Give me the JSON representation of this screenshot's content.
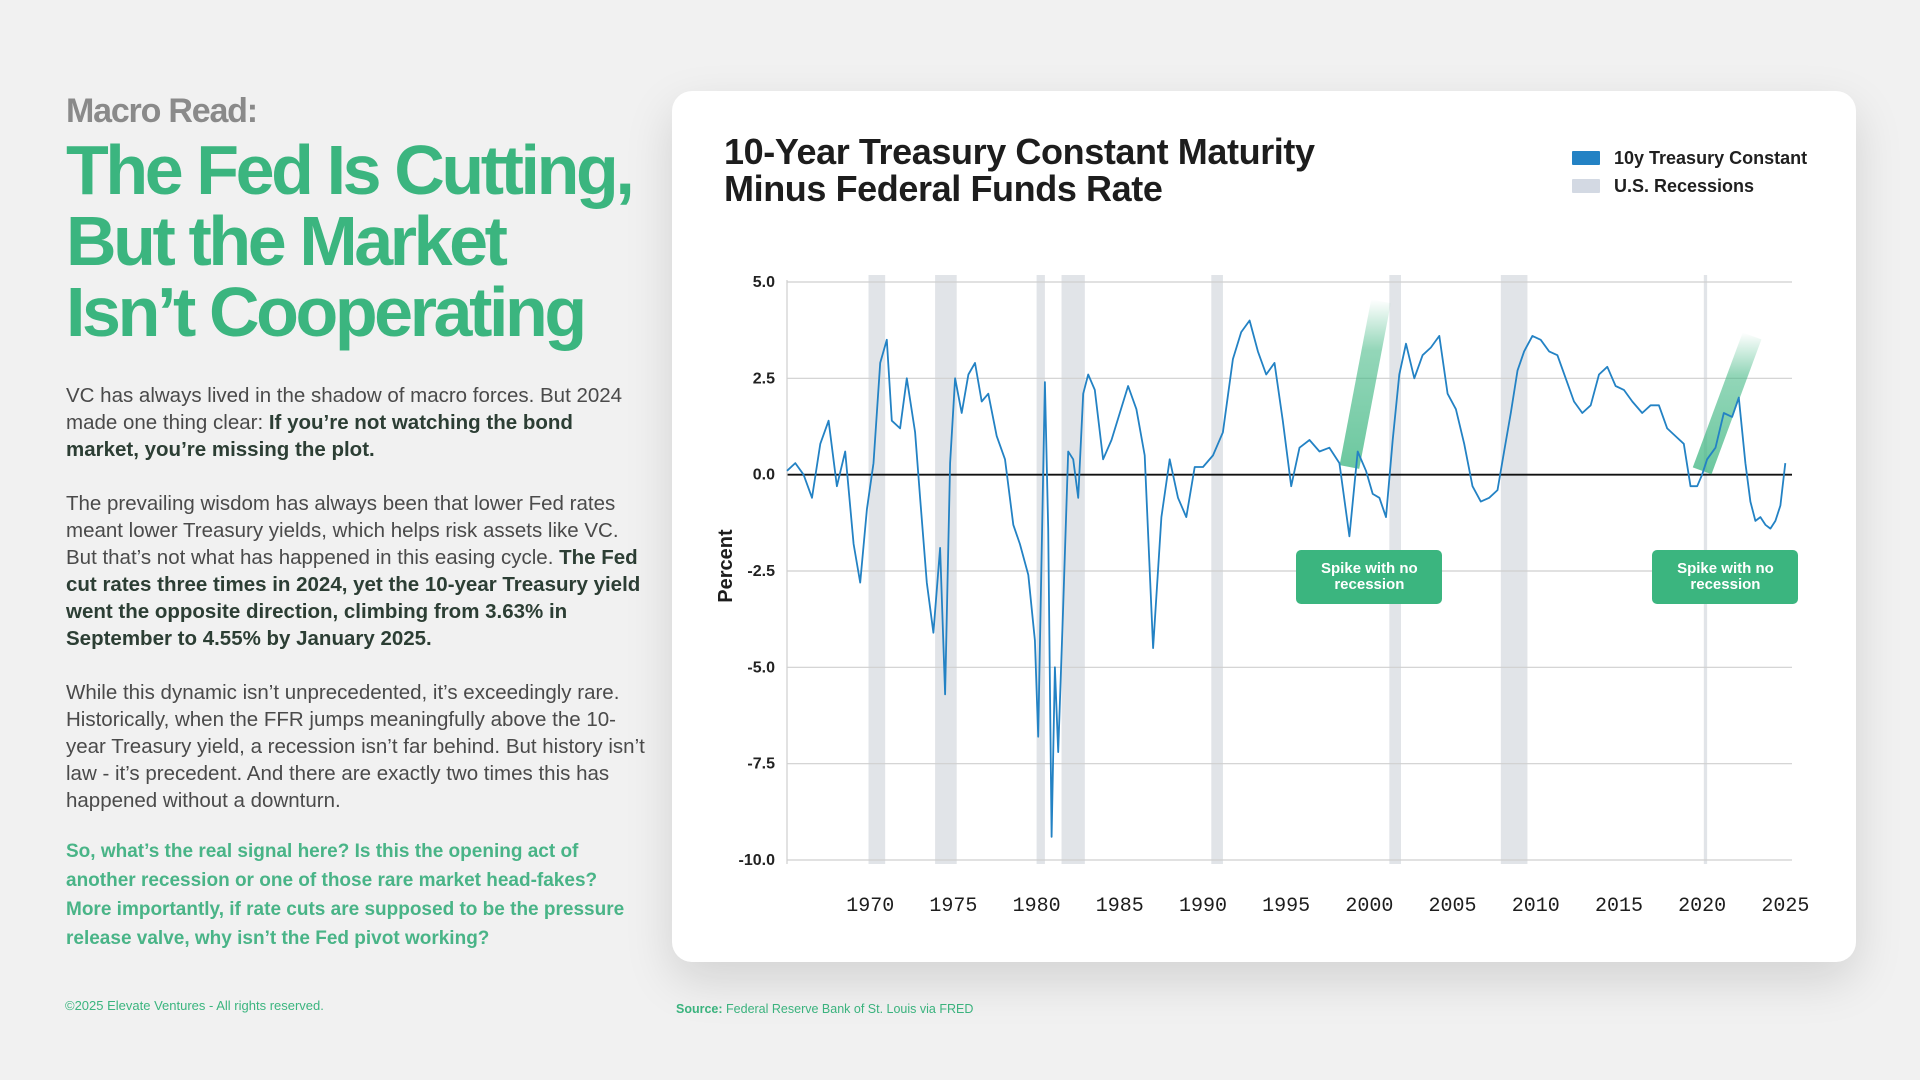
{
  "left": {
    "kicker": "Macro Read:",
    "headline": [
      "The Fed Is Cutting,",
      "But the Market",
      "Isn’t Cooperating"
    ],
    "p1_plain": "VC has always lived in the shadow of macro forces. But 2024 made one thing clear: ",
    "p1_bold": "If you’re not watching the bond market, you’re missing the plot.",
    "p2_plain": "The prevailing wisdom has always been that lower Fed rates meant lower Treasury yields, which helps risk assets like VC. But that’s not what has happened in this easing cycle. ",
    "p2_bold": "The Fed cut rates three times in 2024, yet the 10-year Treasury yield went the opposite direction, climbing from 3.63% in September to 4.55% by January 2025.",
    "p3": "While this dynamic isn’t unprecedented, it’s exceedingly rare. Historically, when the FFR jumps meaningfully above the 10-year Treasury yield, a recession isn’t far behind. But history isn’t law - it’s precedent. And there are exactly two times this has happened without a downturn.",
    "question": "So, what’s the real signal here? Is this the opening act of another recession or one of those rare market head-fakes? More importantly, if rate cuts are supposed to be the pressure release valve, why isn’t the Fed pivot working?"
  },
  "footer": {
    "copyright": "©2025 Elevate Ventures - All rights reserved.",
    "source_label": "Source:",
    "source_text": "Federal Reserve Bank of St. Louis via FRED"
  },
  "colors": {
    "accent_green": "#3bb57f",
    "series_blue": "#2382c4",
    "recession_grey": "#e1e4e8"
  },
  "chart_data": {
    "type": "line",
    "title": [
      "10-Year Treasury Constant Maturity",
      "Minus Federal Funds Rate"
    ],
    "ylabel": "Percent",
    "xlabel": "",
    "xlim": [
      1965,
      2025.4
    ],
    "ylim": [
      -10,
      5
    ],
    "yticks": [
      5.0,
      2.5,
      0.0,
      -2.5,
      -5.0,
      -7.5,
      -10.0
    ],
    "ytick_labels": [
      "5.0",
      "2.5",
      "0.0",
      "-2.5",
      "-5.0",
      "-7.5",
      "-10.0"
    ],
    "xticks": [
      1970,
      1975,
      1980,
      1985,
      1990,
      1995,
      2000,
      2005,
      2010,
      2015,
      2020,
      2025
    ],
    "xtick_labels": [
      "1970",
      "1975",
      "1980",
      "1985",
      "1990",
      "1995",
      "2000",
      "2005",
      "2010",
      "2015",
      "2020",
      "2025"
    ],
    "grid": true,
    "legend": [
      {
        "label": "10y Treasury Constant",
        "color": "#2382c4"
      },
      {
        "label": "U.S. Recessions",
        "color": "#d3d9e3"
      }
    ],
    "legend_position": "top-right",
    "recessions": [
      [
        1969.9,
        1970.9
      ],
      [
        1973.9,
        1975.2
      ],
      [
        1980.0,
        1980.5
      ],
      [
        1981.5,
        1982.9
      ],
      [
        1990.5,
        1991.2
      ],
      [
        2001.2,
        2001.9
      ],
      [
        2007.9,
        2009.5
      ],
      [
        2020.1,
        2020.3
      ]
    ],
    "series": [
      {
        "name": "10y Treasury Constant",
        "color": "#2382c4",
        "x": [
          1965.0,
          1965.5,
          1966.0,
          1966.5,
          1967.0,
          1967.5,
          1968.0,
          1968.5,
          1969.0,
          1969.4,
          1969.8,
          1970.2,
          1970.6,
          1971.0,
          1971.3,
          1971.8,
          1972.2,
          1972.7,
          1973.0,
          1973.4,
          1973.8,
          1974.2,
          1974.5,
          1974.8,
          1975.1,
          1975.5,
          1975.9,
          1976.3,
          1976.7,
          1977.1,
          1977.6,
          1978.1,
          1978.6,
          1979.0,
          1979.5,
          1979.9,
          1980.1,
          1980.3,
          1980.5,
          1980.7,
          1980.9,
          1981.1,
          1981.3,
          1981.6,
          1981.9,
          1982.2,
          1982.5,
          1982.8,
          1983.1,
          1983.5,
          1984.0,
          1984.5,
          1985.0,
          1985.5,
          1986.0,
          1986.5,
          1987.0,
          1987.5,
          1988.0,
          1988.5,
          1989.0,
          1989.5,
          1990.0,
          1990.6,
          1991.2,
          1991.8,
          1992.3,
          1992.8,
          1993.3,
          1993.8,
          1994.3,
          1994.8,
          1995.3,
          1995.8,
          1996.4,
          1997.0,
          1997.6,
          1998.2,
          1998.8,
          1999.3,
          1999.8,
          2000.2,
          2000.6,
          2001.0,
          2001.4,
          2001.8,
          2002.2,
          2002.7,
          2003.2,
          2003.7,
          2004.2,
          2004.7,
          2005.2,
          2005.7,
          2006.2,
          2006.7,
          2007.2,
          2007.7,
          2008.1,
          2008.5,
          2008.9,
          2009.3,
          2009.8,
          2010.3,
          2010.8,
          2011.3,
          2011.8,
          2012.3,
          2012.8,
          2013.3,
          2013.8,
          2014.3,
          2014.8,
          2015.3,
          2015.8,
          2016.4,
          2016.9,
          2017.4,
          2017.9,
          2018.4,
          2018.9,
          2019.3,
          2019.7,
          2020.0,
          2020.3,
          2020.8,
          2021.3,
          2021.8,
          2022.2,
          2022.6,
          2022.9,
          2023.2,
          2023.5,
          2023.8,
          2024.1,
          2024.4,
          2024.7,
          2025.0
        ],
        "y": [
          0.1,
          0.3,
          0.0,
          -0.6,
          0.8,
          1.4,
          -0.3,
          0.6,
          -1.8,
          -2.8,
          -0.9,
          0.3,
          2.9,
          3.5,
          1.4,
          1.2,
          2.5,
          1.1,
          -0.6,
          -2.8,
          -4.1,
          -1.9,
          -5.7,
          0.3,
          2.5,
          1.6,
          2.6,
          2.9,
          1.9,
          2.1,
          1.0,
          0.4,
          -1.3,
          -1.8,
          -2.6,
          -4.3,
          -6.8,
          -2.1,
          2.4,
          -1.4,
          -9.4,
          -5.0,
          -7.2,
          -3.4,
          0.6,
          0.4,
          -0.6,
          2.1,
          2.6,
          2.2,
          0.4,
          0.9,
          1.6,
          2.3,
          1.7,
          0.5,
          -4.5,
          -1.1,
          0.4,
          -0.6,
          -1.1,
          0.2,
          0.2,
          0.5,
          1.1,
          3.0,
          3.7,
          4.0,
          3.2,
          2.6,
          2.9,
          1.4,
          -0.3,
          0.7,
          0.9,
          0.6,
          0.7,
          0.3,
          -1.6,
          0.6,
          0.1,
          -0.5,
          -0.6,
          -1.1,
          0.9,
          2.6,
          3.4,
          2.5,
          3.1,
          3.3,
          3.6,
          2.1,
          1.7,
          0.8,
          -0.3,
          -0.7,
          -0.6,
          -0.4,
          0.6,
          1.6,
          2.7,
          3.2,
          3.6,
          3.5,
          3.2,
          3.1,
          2.5,
          1.9,
          1.6,
          1.8,
          2.6,
          2.8,
          2.3,
          2.2,
          1.9,
          1.6,
          1.8,
          1.8,
          1.2,
          1.0,
          0.8,
          -0.3,
          -0.3,
          0.0,
          0.4,
          0.7,
          1.6,
          1.5,
          2.0,
          0.3,
          -0.7,
          -1.2,
          -1.1,
          -1.3,
          -1.4,
          -1.2,
          -0.8,
          0.3
        ]
      }
    ],
    "annotations": [
      {
        "text": "Spike with no recession",
        "x": 2000.0,
        "y": -2.65
      },
      {
        "text": "Spike with no recession",
        "x": 2021.4,
        "y": -2.65
      }
    ]
  }
}
